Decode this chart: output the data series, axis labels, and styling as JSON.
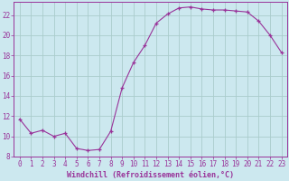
{
  "x": [
    0,
    1,
    2,
    3,
    4,
    5,
    6,
    7,
    8,
    9,
    10,
    11,
    12,
    13,
    14,
    15,
    16,
    17,
    18,
    19,
    20,
    21,
    22,
    23
  ],
  "y": [
    11.7,
    10.3,
    10.6,
    10.0,
    10.3,
    8.8,
    8.6,
    8.7,
    10.5,
    14.8,
    17.3,
    19.0,
    21.2,
    22.1,
    22.7,
    22.8,
    22.6,
    22.5,
    22.5,
    22.4,
    22.3,
    21.4,
    20.0,
    18.3
  ],
  "line_color": "#993399",
  "marker": "+",
  "bg_color": "#cce8ef",
  "grid_color": "#aacccc",
  "xlabel": "Windchill (Refroidissement éolien,°C)",
  "ylim": [
    8,
    23
  ],
  "xlim": [
    -0.5,
    23.5
  ],
  "yticks": [
    8,
    10,
    12,
    14,
    16,
    18,
    20,
    22
  ],
  "xticks": [
    0,
    1,
    2,
    3,
    4,
    5,
    6,
    7,
    8,
    9,
    10,
    11,
    12,
    13,
    14,
    15,
    16,
    17,
    18,
    19,
    20,
    21,
    22,
    23
  ],
  "tick_color": "#993399",
  "label_color": "#993399",
  "font_size": 5.5,
  "xlabel_font_size": 6.0
}
